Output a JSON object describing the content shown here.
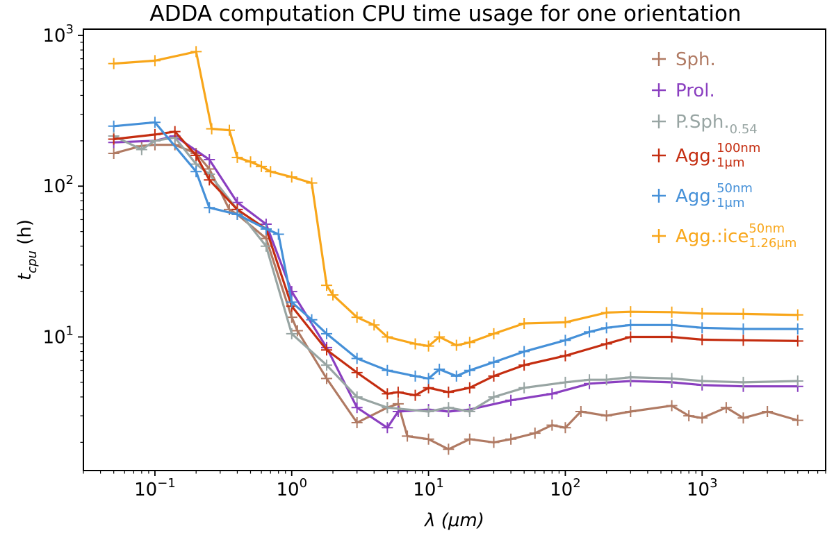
{
  "chart_data": {
    "type": "line",
    "title": "ADDA computation CPU time usage for one orientation",
    "xlabel": "λ (μm)",
    "ylabel": "t_cpu (h)",
    "xscale": "log",
    "yscale": "log",
    "xlim": [
      0.03,
      8000
    ],
    "ylim": [
      1.3,
      1100
    ],
    "legend_position": "upper-right",
    "x_ticks": [
      {
        "value": 0.1,
        "base": "10",
        "exp": "−1"
      },
      {
        "value": 1,
        "base": "10",
        "exp": "0"
      },
      {
        "value": 10,
        "base": "10",
        "exp": "1"
      },
      {
        "value": 100,
        "base": "10",
        "exp": "2"
      },
      {
        "value": 1000,
        "base": "10",
        "exp": "3"
      }
    ],
    "y_ticks": [
      {
        "value": 10,
        "base": "10",
        "exp": "1"
      },
      {
        "value": 100,
        "base": "10",
        "exp": "2"
      },
      {
        "value": 1000,
        "base": "10",
        "exp": "3"
      }
    ],
    "series": [
      {
        "name": "Sph.",
        "sub": "",
        "sup": "",
        "color": "#b07a63",
        "x": [
          0.05,
          0.08,
          0.1,
          0.14,
          0.2,
          0.25,
          0.35,
          0.4,
          0.65,
          1.0,
          1.1,
          1.8,
          3.0,
          5.0,
          6.0,
          7.0,
          10,
          14,
          20,
          30,
          40,
          60,
          80,
          100,
          130,
          200,
          300,
          600,
          800,
          1000,
          1500,
          2000,
          3000,
          5000
        ],
        "y": [
          165,
          185,
          188,
          188,
          165,
          130,
          70,
          65,
          45,
          13.5,
          11,
          5.3,
          2.7,
          3.4,
          3.6,
          2.2,
          2.1,
          1.8,
          2.1,
          2.0,
          2.1,
          2.3,
          2.6,
          2.5,
          3.2,
          3.0,
          3.2,
          3.5,
          3.0,
          2.9,
          3.4,
          2.9,
          3.2,
          2.8
        ]
      },
      {
        "name": "Prol.",
        "sub": "",
        "sup": "",
        "color": "#8a3fc0",
        "x": [
          0.05,
          0.1,
          0.14,
          0.25,
          0.4,
          0.65,
          1.0,
          1.8,
          3.0,
          5.0,
          6.0,
          10,
          14,
          20,
          40,
          80,
          150,
          300,
          600,
          1000,
          2000,
          5000
        ],
        "y": [
          195,
          200,
          215,
          150,
          78,
          56,
          20,
          8.5,
          3.4,
          2.5,
          3.2,
          3.3,
          3.2,
          3.3,
          3.8,
          4.2,
          4.9,
          5.1,
          5.0,
          4.8,
          4.7,
          4.7
        ]
      },
      {
        "name": "P.Sph.",
        "sub": "0.54",
        "sup": "",
        "color": "#98a5a3",
        "x": [
          0.05,
          0.08,
          0.1,
          0.14,
          0.2,
          0.25,
          0.4,
          0.65,
          1.0,
          1.8,
          3.0,
          5.0,
          10,
          14,
          20,
          30,
          50,
          100,
          150,
          200,
          300,
          600,
          1000,
          2000,
          5000
        ],
        "y": [
          215,
          175,
          200,
          210,
          140,
          120,
          70,
          40,
          10.5,
          6.5,
          4.0,
          3.4,
          3.2,
          3.4,
          3.2,
          4.0,
          4.6,
          5.0,
          5.2,
          5.2,
          5.4,
          5.3,
          5.1,
          5.0,
          5.1
        ]
      },
      {
        "name": "Agg.",
        "sub": "1μm",
        "sup": "100nm",
        "color": "#c42d10",
        "x": [
          0.05,
          0.1,
          0.14,
          0.2,
          0.25,
          0.4,
          0.65,
          1.0,
          1.8,
          3.0,
          5.0,
          6.0,
          8.0,
          10,
          14,
          20,
          30,
          50,
          100,
          200,
          300,
          600,
          1000,
          2000,
          5000
        ],
        "y": [
          205,
          220,
          230,
          160,
          110,
          70,
          52,
          16,
          8.2,
          5.8,
          4.2,
          4.3,
          4.1,
          4.6,
          4.3,
          4.6,
          5.5,
          6.5,
          7.5,
          9.0,
          10.0,
          10.0,
          9.6,
          9.5,
          9.4
        ]
      },
      {
        "name": "Agg.",
        "sub": "1μm",
        "sup": "50nm",
        "color": "#4590d8",
        "x": [
          0.05,
          0.1,
          0.2,
          0.25,
          0.4,
          0.65,
          0.8,
          1.0,
          1.4,
          1.8,
          3.0,
          5.0,
          8.0,
          10,
          12,
          16,
          20,
          30,
          50,
          100,
          150,
          200,
          300,
          600,
          1000,
          2000,
          5000
        ],
        "y": [
          250,
          265,
          125,
          72,
          65,
          52,
          48,
          17,
          13,
          10.5,
          7.2,
          6.0,
          5.5,
          5.3,
          6.1,
          5.5,
          6.0,
          6.8,
          8.0,
          9.5,
          10.8,
          11.5,
          12.0,
          12.0,
          11.5,
          11.3,
          11.3
        ]
      },
      {
        "name": "Agg.:ice",
        "sub": "1.26μm",
        "sup": "50nm",
        "color": "#f8a61a",
        "x": [
          0.05,
          0.1,
          0.2,
          0.26,
          0.35,
          0.4,
          0.5,
          0.6,
          0.7,
          1.0,
          1.4,
          1.8,
          2.0,
          3.0,
          4.0,
          5.0,
          8.0,
          10,
          12,
          16,
          20,
          30,
          50,
          100,
          200,
          300,
          600,
          1000,
          2000,
          5000
        ],
        "y": [
          650,
          680,
          780,
          240,
          235,
          155,
          145,
          135,
          125,
          115,
          105,
          22,
          19,
          13.5,
          12,
          10,
          9.0,
          8.7,
          10,
          8.8,
          9.2,
          10.5,
          12.3,
          12.5,
          14.5,
          14.7,
          14.6,
          14.3,
          14.2,
          14.0
        ]
      }
    ]
  }
}
